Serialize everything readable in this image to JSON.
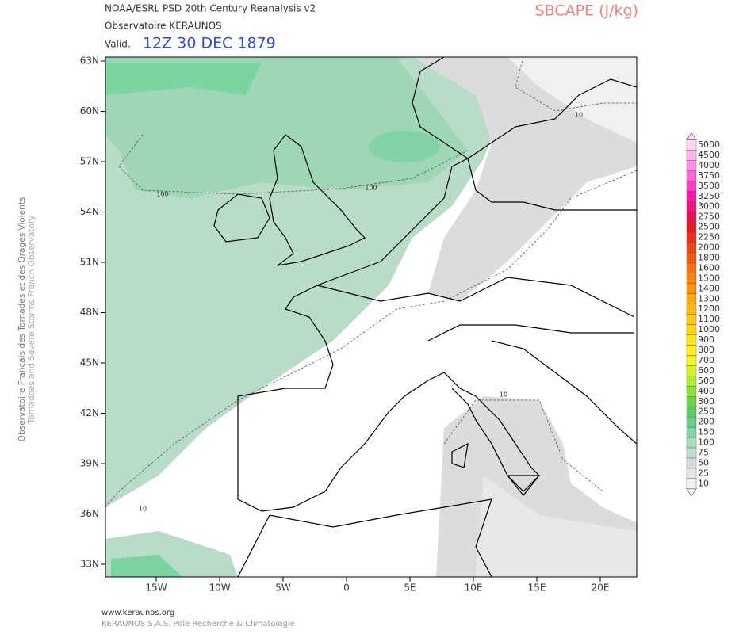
{
  "header": {
    "line1": "NOAA/ESRL PSD 20th Century Reanalysis v2",
    "line2": "Observatoire KERAUNOS",
    "valid_prefix": "Valid.",
    "valid_time": "12Z 30 DEC 1879",
    "parameter": "SBCAPE (J/kg)"
  },
  "side": {
    "line1": "Observatoire Francais des Tornades et des Orages Violents",
    "line2": "Tornadoes and Severe Storms French Observatory"
  },
  "map": {
    "lat_labels": [
      "63N",
      "60N",
      "57N",
      "54N",
      "51N",
      "48N",
      "45N",
      "42N",
      "39N",
      "36N",
      "33N"
    ],
    "lon_labels": [
      "15W",
      "10W",
      "5W",
      "0",
      "5E",
      "10E",
      "15E",
      "20E"
    ],
    "contour_labels": [
      "100",
      "100",
      "10",
      "10",
      "10"
    ]
  },
  "colorbar": {
    "levels": [
      "5000",
      "4500",
      "4000",
      "3750",
      "3500",
      "3250",
      "3000",
      "2750",
      "2500",
      "2250",
      "2000",
      "1800",
      "1600",
      "1500",
      "1400",
      "1300",
      "1200",
      "1100",
      "1000",
      "900",
      "800",
      "700",
      "600",
      "500",
      "400",
      "300",
      "250",
      "200",
      "150",
      "100",
      "75",
      "50",
      "25",
      "10"
    ],
    "colors": [
      "#ffd6f4",
      "#ffb4ec",
      "#ff8ee0",
      "#ff66d4",
      "#ff3cc8",
      "#f71aa8",
      "#f0147a",
      "#e8104e",
      "#e41a28",
      "#e8321e",
      "#ec4818",
      "#f05c14",
      "#f47010",
      "#f6840e",
      "#f8960c",
      "#faa80c",
      "#fcb80e",
      "#fdc810",
      "#fed614",
      "#fee41a",
      "#fef020",
      "#f2f424",
      "#d6f02a",
      "#b2e830",
      "#8cde38",
      "#6cd44a",
      "#5ccc62",
      "#6ccc8a",
      "#86d4a4",
      "#a8dcbc",
      "#c2dccc",
      "#d4d8d6",
      "#e4e4e6",
      "#f2f2f4"
    ]
  },
  "footer": {
    "line1": "www.keraunos.org",
    "line2": "KERAUNOS S.A.S. Pole Recherche & Climatologie"
  }
}
